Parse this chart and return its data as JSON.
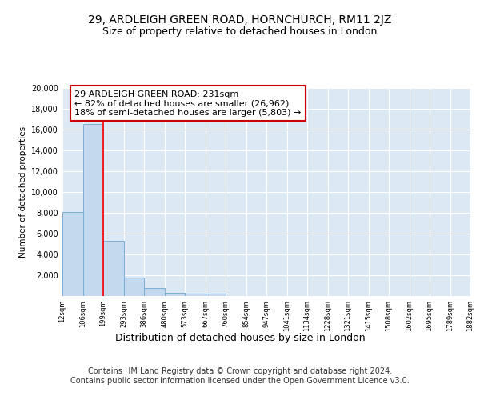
{
  "title1": "29, ARDLEIGH GREEN ROAD, HORNCHURCH, RM11 2JZ",
  "title2": "Size of property relative to detached houses in London",
  "xlabel": "Distribution of detached houses by size in London",
  "ylabel": "Number of detached properties",
  "bar_color": "#c5d9ee",
  "bar_edge_color": "#7aaed6",
  "background_color": "#dde8f5",
  "grid_color": "#ffffff",
  "bins": [
    12,
    106,
    199,
    293,
    386,
    480,
    573,
    667,
    760,
    854,
    947,
    1041,
    1134,
    1228,
    1321,
    1415,
    1508,
    1602,
    1695,
    1789,
    1882
  ],
  "counts": [
    8100,
    16500,
    5300,
    1750,
    750,
    300,
    250,
    220,
    0,
    0,
    0,
    0,
    0,
    0,
    0,
    0,
    0,
    0,
    0,
    0
  ],
  "ylim": [
    0,
    20000
  ],
  "yticks": [
    2000,
    4000,
    6000,
    8000,
    10000,
    12000,
    14000,
    16000,
    18000,
    20000
  ],
  "xtick_labels": [
    "12sqm",
    "106sqm",
    "199sqm",
    "293sqm",
    "386sqm",
    "480sqm",
    "573sqm",
    "667sqm",
    "760sqm",
    "854sqm",
    "947sqm",
    "1041sqm",
    "1134sqm",
    "1228sqm",
    "1321sqm",
    "1415sqm",
    "1508sqm",
    "1602sqm",
    "1695sqm",
    "1789sqm",
    "1882sqm"
  ],
  "red_line_x": 199,
  "annotation_text": "29 ARDLEIGH GREEN ROAD: 231sqm\n← 82% of detached houses are smaller (26,962)\n18% of semi-detached houses are larger (5,803) →",
  "annotation_box_color": "#ffffff",
  "annotation_border_color": "#cc0000",
  "footer_text": "Contains HM Land Registry data © Crown copyright and database right 2024.\nContains public sector information licensed under the Open Government Licence v3.0.",
  "fig_bg": "#ffffff",
  "title1_fontsize": 10,
  "title2_fontsize": 9,
  "annotation_fontsize": 8,
  "footer_fontsize": 7,
  "xlabel_fontsize": 9
}
